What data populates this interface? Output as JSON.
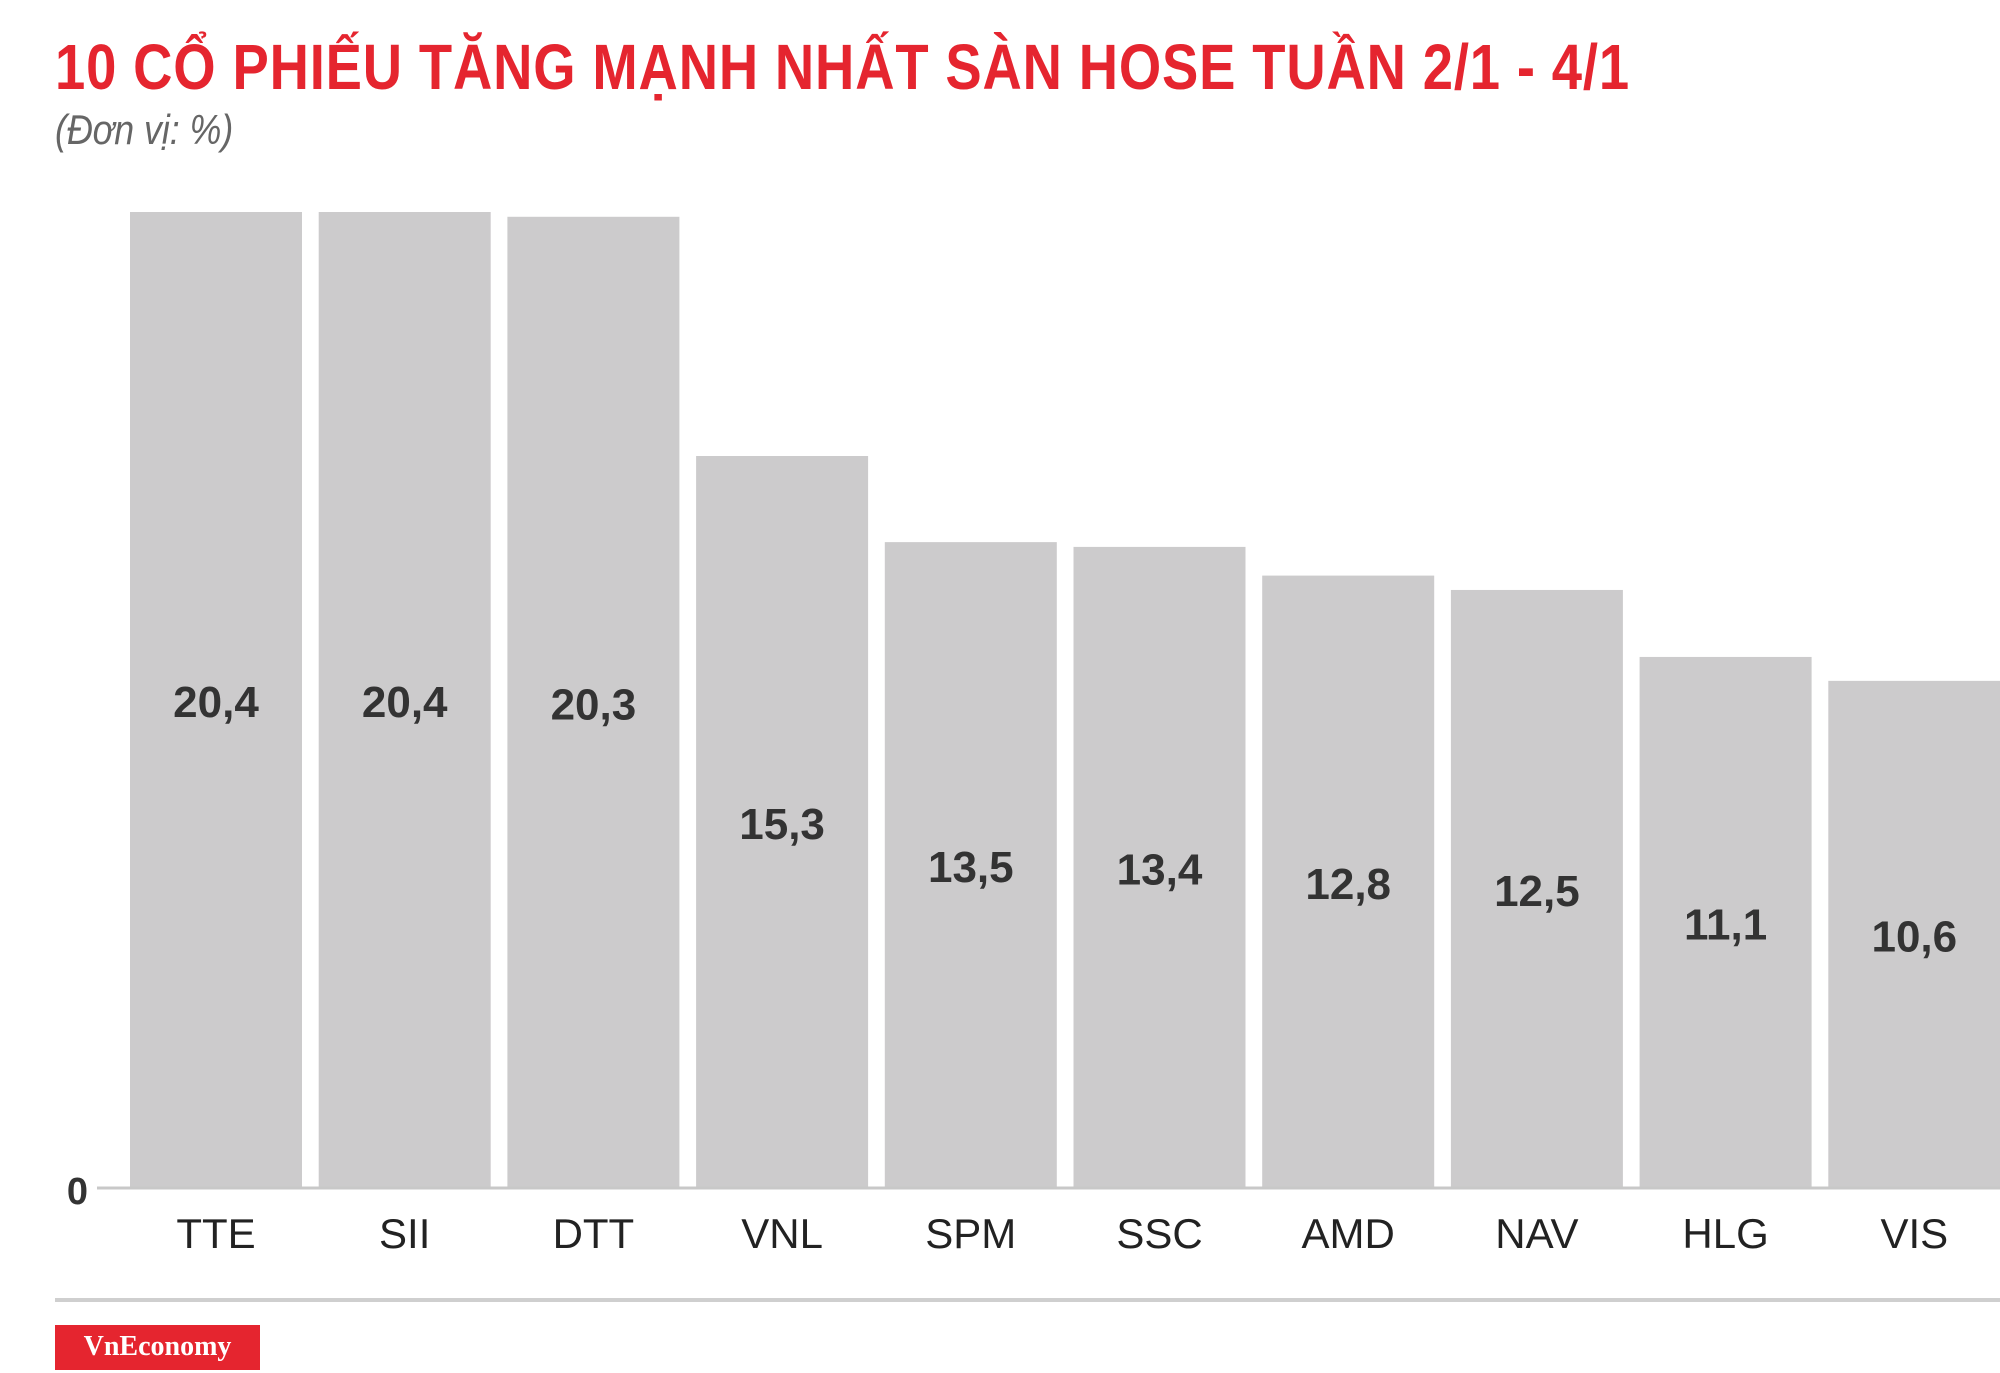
{
  "header": {
    "title": "10 CỔ PHIẾU TĂNG MẠNH NHẤT SÀN HOSE TUẦN 2/1 - 4/1",
    "unit": "(Đơn vị: %)"
  },
  "footer": {
    "brand": "VnEconomy"
  },
  "chart_data": {
    "type": "bar",
    "categories": [
      "TTE",
      "SII",
      "DTT",
      "VNL",
      "SPM",
      "SSC",
      "AMD",
      "NAV",
      "HLG",
      "VIS"
    ],
    "values": [
      20.4,
      20.4,
      20.3,
      15.3,
      13.5,
      13.4,
      12.8,
      12.5,
      11.1,
      10.6
    ],
    "value_labels": [
      "20,4",
      "20,4",
      "20,3",
      "15,3",
      "13,5",
      "13,4",
      "12,8",
      "12,5",
      "11,1",
      "10,6"
    ],
    "y_tick_labels": [
      "0"
    ],
    "ylim": [
      0,
      20.4
    ],
    "grid": false,
    "bar_color": "#cccbcc",
    "accent_color": "#e5252f"
  }
}
